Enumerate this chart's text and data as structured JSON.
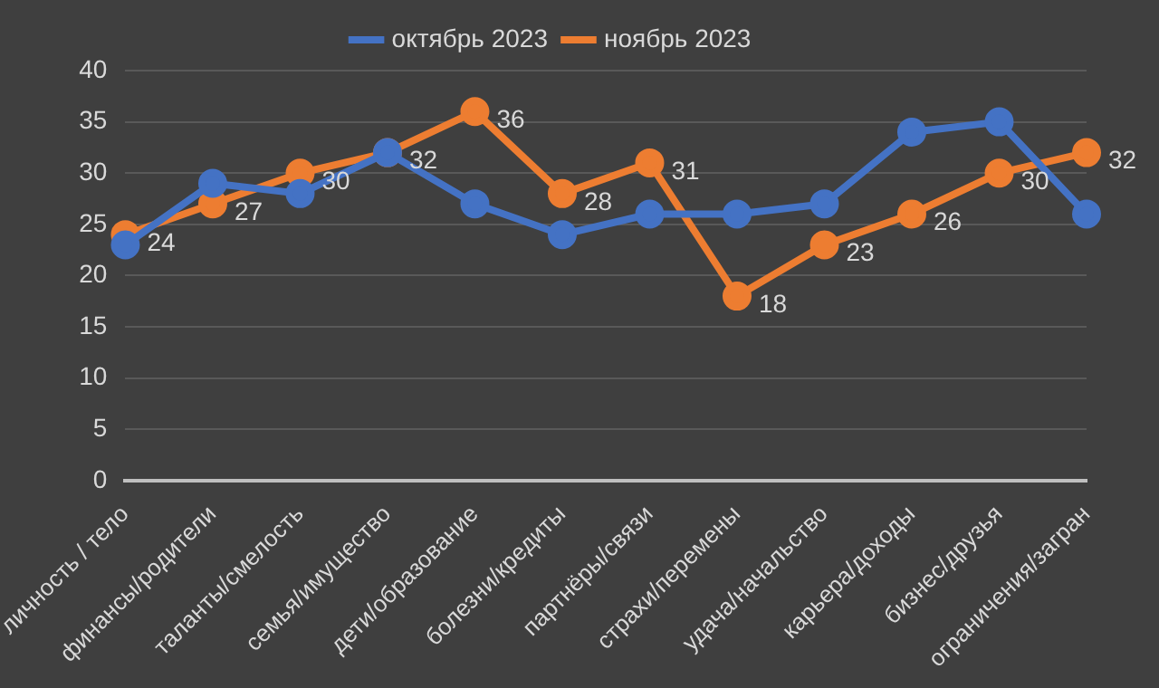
{
  "chart_data": {
    "type": "line",
    "categories": [
      "личность / тело",
      "финансы/родители",
      "таланты/смелость",
      "семья/имущество",
      "дети/образование",
      "болезни/кредиты",
      "партнёры/связи",
      "страхи/перемены",
      "удача/начальство",
      "карьера/доходы",
      "бизнес/друзья",
      "ограничения/загран"
    ],
    "series": [
      {
        "name": "октябрь 2023",
        "color": "#4472c4",
        "values": [
          23,
          29,
          28,
          32,
          27,
          24,
          26,
          26,
          27,
          34,
          35,
          26
        ]
      },
      {
        "name": "ноябрь 2023",
        "color": "#ed7d31",
        "values": [
          24,
          27,
          30,
          32,
          36,
          28,
          31,
          18,
          23,
          26,
          30,
          32
        ],
        "value_labels": [
          "24",
          "27",
          "30",
          "32",
          "36",
          "28",
          "31",
          "18",
          "23",
          "26",
          "30",
          "32"
        ]
      }
    ],
    "ylim": [
      0,
      40
    ],
    "yticks": [
      0,
      5,
      10,
      15,
      20,
      25,
      30,
      35,
      40
    ],
    "grid": "y",
    "legend": "top",
    "marker": "circle",
    "line_style": "solid"
  }
}
